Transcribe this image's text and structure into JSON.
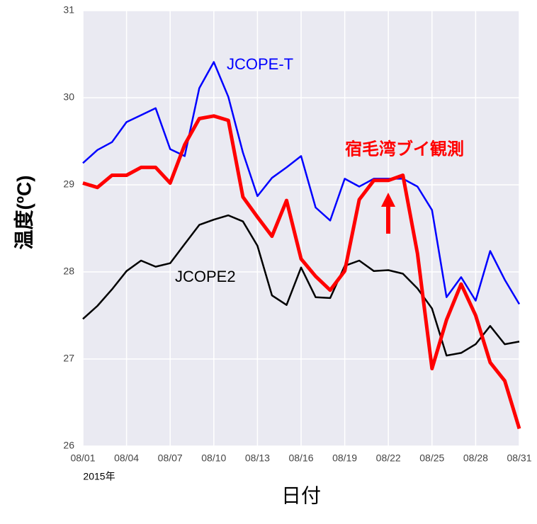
{
  "chart_data": {
    "type": "line",
    "y_label": "温度(ºC)",
    "x_label": "日付",
    "x_sublabel": "2015年",
    "categories": [
      "08/01",
      null,
      null,
      "08/04",
      null,
      null,
      "08/07",
      null,
      null,
      "08/10",
      null,
      null,
      "08/13",
      null,
      null,
      "08/16",
      null,
      null,
      "08/19",
      null,
      null,
      "08/22",
      null,
      null,
      "08/25",
      null,
      null,
      "08/28",
      null,
      null,
      "08/31"
    ],
    "ylim": [
      26,
      31
    ],
    "yticks": [
      26,
      27,
      28,
      29,
      30,
      31
    ],
    "grid": true,
    "series": [
      {
        "name": "JCOPE-T",
        "color": "#0000ff",
        "values": [
          29.25,
          29.4,
          29.49,
          29.72,
          29.8,
          29.88,
          29.41,
          29.33,
          30.11,
          30.41,
          30.01,
          29.37,
          28.87,
          29.08,
          29.2,
          29.33,
          28.74,
          28.59,
          29.07,
          28.98,
          29.07,
          29.07,
          29.07,
          28.98,
          28.71,
          27.71,
          27.94,
          27.67,
          28.24,
          27.91,
          27.63
        ]
      },
      {
        "name": "宿毛湾ブイ観測",
        "color": "#ff0000",
        "values": [
          29.02,
          28.97,
          29.11,
          29.11,
          29.2,
          29.2,
          29.02,
          29.46,
          29.76,
          29.79,
          29.74,
          28.86,
          28.63,
          28.41,
          28.82,
          28.15,
          27.95,
          27.79,
          28.01,
          28.83,
          29.05,
          29.05,
          29.11,
          28.21,
          26.89,
          27.45,
          27.86,
          27.5,
          26.96,
          26.75,
          26.2
        ]
      },
      {
        "name": "JCOPE2",
        "color": "#000000",
        "values": [
          27.46,
          27.61,
          27.8,
          28.01,
          28.13,
          28.06,
          28.1,
          28.32,
          28.54,
          28.6,
          28.65,
          28.58,
          28.3,
          27.73,
          27.62,
          28.05,
          27.71,
          27.7,
          28.07,
          28.13,
          28.01,
          28.02,
          27.98,
          27.81,
          27.58,
          27.04,
          27.07,
          27.17,
          27.38,
          27.17,
          27.2
        ]
      }
    ]
  }
}
